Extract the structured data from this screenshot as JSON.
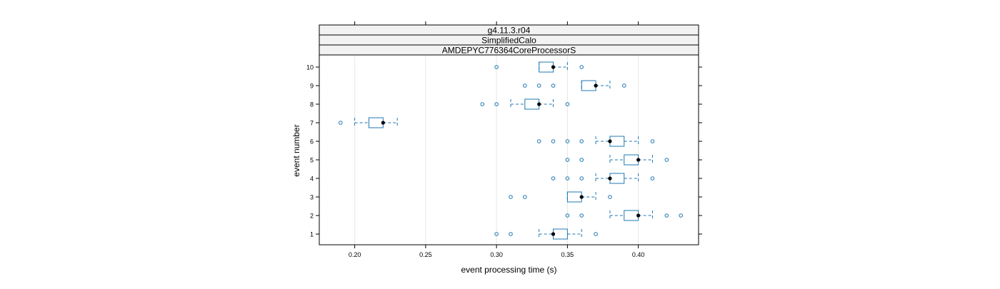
{
  "strips": [
    "g4.11.3.r04",
    "SimplifiedCalo",
    "AMDEPYC776364CoreProcessorS"
  ],
  "chart_data": {
    "type": "box",
    "xlabel": "event processing time (s)",
    "ylabel": "event number",
    "xlim": [
      0.175,
      0.4425
    ],
    "xticks": [
      0.2,
      0.25,
      0.3,
      0.35,
      0.4
    ],
    "xtick_labels": [
      "0.20",
      "0.25",
      "0.30",
      "0.35",
      "0.40"
    ],
    "grid": "vertical",
    "colors": {
      "box": "#1f78b4",
      "median": "#000000",
      "grid": "#e6e6e6",
      "strip_bg": "#f2f2f2"
    },
    "events": [
      {
        "label": "1",
        "wlo": 0.33,
        "q1": 0.34,
        "median": 0.34,
        "q3": 0.35,
        "whi": 0.36,
        "outliers": [
          0.3,
          0.31,
          0.37
        ]
      },
      {
        "label": "2",
        "wlo": 0.38,
        "q1": 0.39,
        "median": 0.4,
        "q3": 0.4,
        "whi": 0.41,
        "outliers": [
          0.35,
          0.36,
          0.42,
          0.43
        ]
      },
      {
        "label": "3",
        "wlo": 0.35,
        "q1": 0.35,
        "median": 0.36,
        "q3": 0.36,
        "whi": 0.37,
        "outliers": [
          0.31,
          0.32,
          0.38
        ]
      },
      {
        "label": "4",
        "wlo": 0.37,
        "q1": 0.38,
        "median": 0.38,
        "q3": 0.39,
        "whi": 0.4,
        "outliers": [
          0.34,
          0.35,
          0.36,
          0.41
        ]
      },
      {
        "label": "5",
        "wlo": 0.38,
        "q1": 0.39,
        "median": 0.4,
        "q3": 0.4,
        "whi": 0.41,
        "outliers": [
          0.35,
          0.36,
          0.42
        ]
      },
      {
        "label": "6",
        "wlo": 0.37,
        "q1": 0.38,
        "median": 0.38,
        "q3": 0.39,
        "whi": 0.4,
        "outliers": [
          0.33,
          0.34,
          0.35,
          0.36,
          0.41
        ]
      },
      {
        "label": "7",
        "wlo": 0.2,
        "q1": 0.21,
        "median": 0.22,
        "q3": 0.22,
        "whi": 0.23,
        "outliers": [
          0.19
        ]
      },
      {
        "label": "8",
        "wlo": 0.31,
        "q1": 0.32,
        "median": 0.33,
        "q3": 0.33,
        "whi": 0.34,
        "outliers": [
          0.29,
          0.3,
          0.35
        ]
      },
      {
        "label": "9",
        "wlo": 0.36,
        "q1": 0.36,
        "median": 0.37,
        "q3": 0.37,
        "whi": 0.38,
        "outliers": [
          0.32,
          0.33,
          0.34,
          0.39
        ]
      },
      {
        "label": "10",
        "wlo": 0.33,
        "q1": 0.33,
        "median": 0.34,
        "q3": 0.34,
        "whi": 0.35,
        "outliers": [
          0.3,
          0.36
        ]
      }
    ]
  }
}
